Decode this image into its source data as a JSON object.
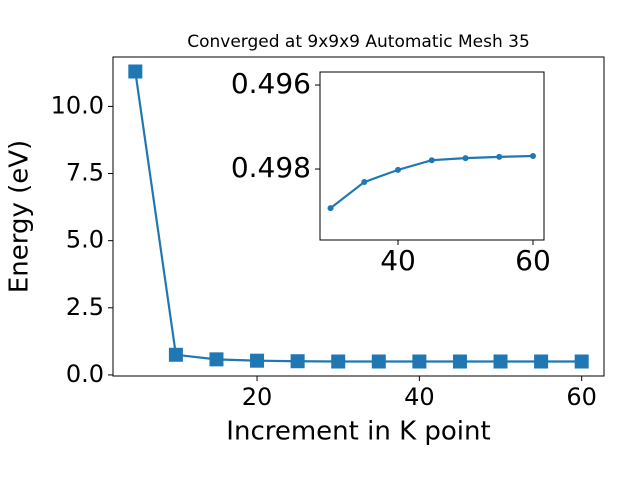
{
  "chart_data": [
    {
      "type": "line",
      "title": "Converged at 9x9x9 Automatic Mesh 35",
      "x_label": "Increment in K point",
      "y_label": "Energy (eV)",
      "x": [
        5,
        10,
        15,
        20,
        25,
        30,
        35,
        40,
        45,
        50,
        55,
        60
      ],
      "values": [
        11.3,
        0.75,
        0.58,
        0.53,
        0.51,
        0.5,
        0.5,
        0.5,
        0.5,
        0.5,
        0.5,
        0.5
      ],
      "color": "#1f77b4",
      "marker": "square",
      "xlim": [
        2.25,
        62.75
      ],
      "xticks": [
        20,
        40,
        60
      ],
      "ylim": [
        -0.04,
        11.84
      ],
      "yticks": [
        {
          "value": 0,
          "label": "0.0"
        },
        {
          "value": 2.5,
          "label": "2.5"
        },
        {
          "value": 5,
          "label": "5.0"
        },
        {
          "value": 7.5,
          "label": "7.5"
        },
        {
          "value": 10,
          "label": "10.0"
        }
      ]
    },
    {
      "type": "line",
      "x": [
        30,
        35,
        40,
        45,
        50,
        55,
        60
      ],
      "values": [
        0.49893,
        0.49831,
        0.49802,
        0.49779,
        0.49774,
        0.49771,
        0.49769
      ],
      "color": "#1f77b4",
      "marker": "circle",
      "xlim": [
        28.44,
        61.63
      ],
      "xticks": [
        40,
        60
      ],
      "ylim": [
        0.49569,
        0.49969
      ],
      "y_inverted": true,
      "yticks": [
        0.496,
        0.498
      ]
    }
  ]
}
